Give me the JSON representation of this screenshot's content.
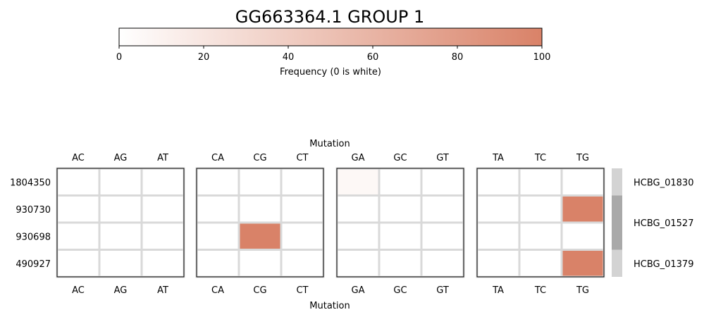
{
  "chart_data": {
    "type": "heatmap",
    "title": "GG663364.1 GROUP 1",
    "colorbar": {
      "label": "Frequency (0 is white)",
      "ticks": [
        0,
        20,
        40,
        60,
        80,
        100
      ],
      "range": [
        0,
        100
      ],
      "color_min": "#ffffff",
      "color_max": "#d98268"
    },
    "xlabel": "Mutation",
    "panels": [
      {
        "columns": [
          "AC",
          "AG",
          "AT"
        ]
      },
      {
        "columns": [
          "CA",
          "CG",
          "CT"
        ]
      },
      {
        "columns": [
          "GA",
          "GC",
          "GT"
        ]
      },
      {
        "columns": [
          "TA",
          "TC",
          "TG"
        ]
      }
    ],
    "rows": [
      "1804350",
      "930730",
      "930698",
      "490927"
    ],
    "values": [
      [
        0,
        0,
        0,
        0,
        0,
        0,
        6,
        0,
        0,
        0,
        0,
        0
      ],
      [
        0,
        0,
        0,
        0,
        0,
        0,
        0,
        0,
        0,
        0,
        0,
        100
      ],
      [
        0,
        0,
        0,
        0,
        100,
        0,
        0,
        0,
        0,
        0,
        0,
        0
      ],
      [
        0,
        0,
        0,
        0,
        0,
        0,
        0,
        0,
        0,
        0,
        0,
        100
      ]
    ],
    "gene_groups": [
      {
        "label": "HCBG_01830",
        "rows": [
          0,
          0
        ],
        "color": "#d3d3d3"
      },
      {
        "label": "HCBG_01527",
        "rows": [
          1,
          2
        ],
        "color": "#a9a9a9"
      },
      {
        "label": "HCBG_01379",
        "rows": [
          3,
          3
        ],
        "color": "#d3d3d3"
      }
    ],
    "grid_color": "#d9d9d9"
  }
}
